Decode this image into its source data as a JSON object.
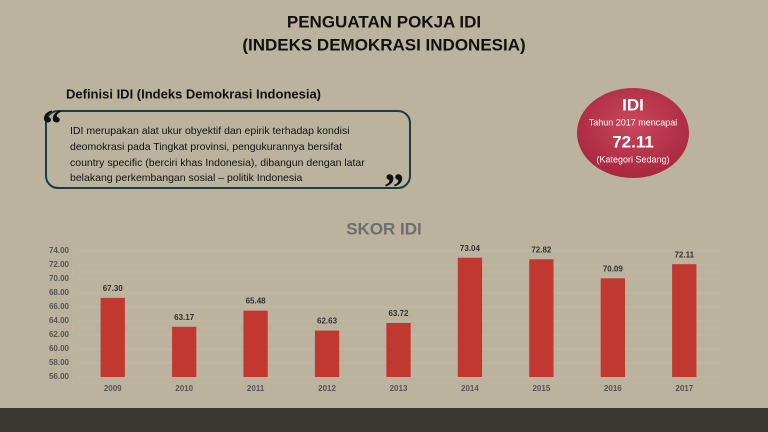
{
  "header": {
    "title_lines": [
      "PENGUATAN POKJA IDI",
      "(INDEKS DEMOKRASI INDONESIA)"
    ]
  },
  "definition": {
    "heading": "Definisi IDI (Indeks Demokrasi Indonesia)",
    "open_quote": "“",
    "close_quote": "”",
    "text_lines": [
      "IDI merupakan alat ukur obyektif dan epirik terhadap kondisi",
      "deomokrasi pada Tingkat provinsi, pengukurannya bersifat",
      "country specific (berciri khas Indonesia), dibangun dengan latar",
      "belakang perkembangan sosial – politik Indonesia"
    ]
  },
  "badge": {
    "title": "IDI",
    "subtitle": "Tahun 2017 mencapai",
    "value": "72.11",
    "category": "(Kategori Sedang)"
  },
  "chart_data": {
    "type": "bar",
    "title": "SKOR IDI",
    "categories": [
      "2009",
      "2010",
      "2011",
      "2012",
      "2013",
      "2014",
      "2015",
      "2016",
      "2017"
    ],
    "values": [
      67.3,
      63.17,
      65.48,
      62.63,
      63.72,
      73.04,
      72.82,
      70.09,
      72.11
    ],
    "value_labels": [
      "67.30",
      "63.17",
      "65.48",
      "62.63",
      "63.72",
      "73.04",
      "72.82",
      "70.09",
      "72.11"
    ],
    "color": "#c0382f",
    "ylim": [
      56,
      74
    ],
    "yticks": [
      {
        "value": 56,
        "label": "56.00"
      },
      {
        "value": 58,
        "label": "58.00"
      },
      {
        "value": 60,
        "label": "60.00"
      },
      {
        "value": 62,
        "label": "62.00"
      },
      {
        "value": 64,
        "label": "64.00"
      },
      {
        "value": 66,
        "label": "66.00"
      },
      {
        "value": 68,
        "label": "68.00"
      },
      {
        "value": 70,
        "label": "70.00"
      },
      {
        "value": 72,
        "label": "72.00"
      },
      {
        "value": 74,
        "label": "74.00"
      }
    ],
    "grid": true
  }
}
